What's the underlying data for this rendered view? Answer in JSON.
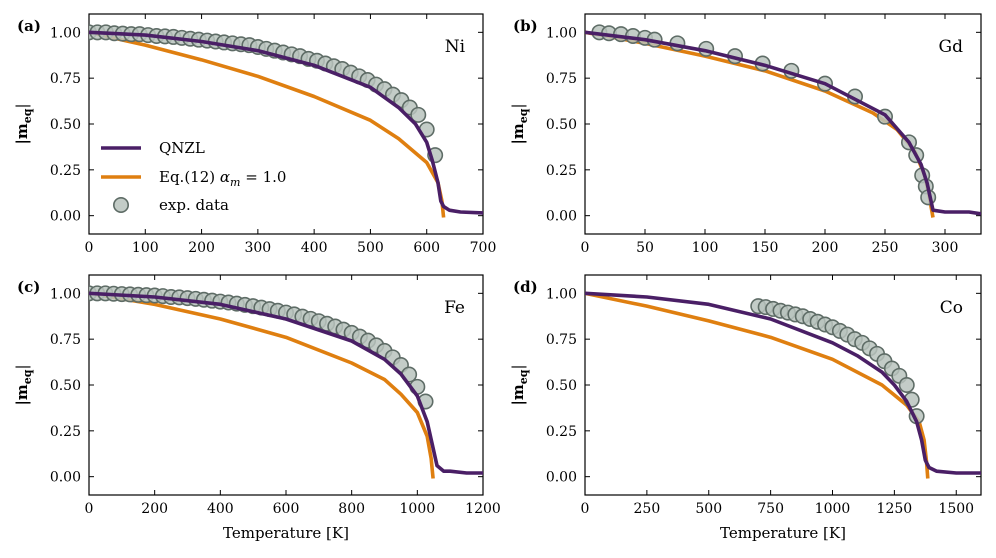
{
  "colors": {
    "qnzl": "#4a1f66",
    "eq12": "#df7f10",
    "exp_fill": "#b9c3bd",
    "exp_edge": "#5e6c66"
  },
  "legend": {
    "qnzl": "QNZL",
    "eq12_prefix": "Eq.(12) ",
    "eq12_alpha": "α",
    "eq12_sub": "m",
    "eq12_suffix": " = 1.0",
    "exp": "exp. data"
  },
  "chart_data": [
    {
      "type": "line",
      "panel": "(a)",
      "title": "Ni",
      "xlabel": "",
      "ylabel_main": "|m",
      "ylabel_sub": "eq",
      "ylabel_end": "|",
      "xlim": [
        0,
        700
      ],
      "ylim": [
        -0.1,
        1.1
      ],
      "xticks": [
        0,
        100,
        200,
        300,
        400,
        500,
        600,
        700
      ],
      "yticks": [
        0.0,
        0.25,
        0.5,
        0.75,
        1.0
      ],
      "ytick_labels": [
        "0.00",
        "0.25",
        "0.50",
        "0.75",
        "1.00"
      ],
      "show_legend": true,
      "series": [
        {
          "name": "QNZL",
          "x": [
            0,
            100,
            200,
            300,
            400,
            500,
            550,
            580,
            600,
            610,
            620,
            625,
            630,
            640,
            660,
            700
          ],
          "y": [
            1.0,
            0.985,
            0.95,
            0.9,
            0.82,
            0.7,
            0.59,
            0.5,
            0.4,
            0.3,
            0.18,
            0.08,
            0.05,
            0.03,
            0.02,
            0.015
          ]
        },
        {
          "name": "Eq.(12) α_m = 1.0",
          "x": [
            0,
            100,
            200,
            300,
            400,
            500,
            550,
            600,
            620,
            627,
            630
          ],
          "y": [
            1.0,
            0.93,
            0.85,
            0.76,
            0.65,
            0.52,
            0.42,
            0.29,
            0.18,
            0.08,
            -0.01
          ]
        },
        {
          "name": "exp. data",
          "x": [
            0,
            15,
            30,
            45,
            60,
            75,
            90,
            105,
            120,
            135,
            150,
            165,
            180,
            195,
            210,
            225,
            240,
            255,
            270,
            285,
            300,
            315,
            330,
            345,
            360,
            375,
            390,
            405,
            420,
            435,
            450,
            465,
            480,
            495,
            510,
            525,
            540,
            555,
            570,
            585,
            600,
            615
          ],
          "y": [
            1.0,
            1.0,
            1.0,
            0.995,
            0.993,
            0.99,
            0.99,
            0.985,
            0.98,
            0.978,
            0.975,
            0.97,
            0.965,
            0.96,
            0.955,
            0.95,
            0.945,
            0.94,
            0.935,
            0.93,
            0.92,
            0.91,
            0.9,
            0.89,
            0.88,
            0.87,
            0.855,
            0.845,
            0.83,
            0.815,
            0.8,
            0.78,
            0.76,
            0.74,
            0.715,
            0.69,
            0.66,
            0.63,
            0.59,
            0.55,
            0.47,
            0.33
          ]
        }
      ]
    },
    {
      "type": "line",
      "panel": "(b)",
      "title": "Gd",
      "xlabel": "",
      "ylabel_main": "|m",
      "ylabel_sub": "eq",
      "ylabel_end": "|",
      "xlim": [
        0,
        330
      ],
      "ylim": [
        -0.1,
        1.1
      ],
      "xticks": [
        0,
        50,
        100,
        150,
        200,
        250,
        300
      ],
      "yticks": [
        0.0,
        0.25,
        0.5,
        0.75,
        1.0
      ],
      "ytick_labels": [
        "0.00",
        "0.25",
        "0.50",
        "0.75",
        "1.00"
      ],
      "show_legend": false,
      "series": [
        {
          "name": "QNZL",
          "x": [
            0,
            50,
            100,
            150,
            200,
            250,
            270,
            280,
            285,
            288,
            290,
            300,
            320,
            330
          ],
          "y": [
            1.0,
            0.96,
            0.9,
            0.82,
            0.72,
            0.55,
            0.4,
            0.28,
            0.18,
            0.09,
            0.03,
            0.02,
            0.02,
            0.01
          ]
        },
        {
          "name": "Eq.(12) α_m = 1.0",
          "x": [
            0,
            50,
            100,
            150,
            200,
            240,
            260,
            275,
            283,
            287,
            290
          ],
          "y": [
            1.0,
            0.94,
            0.87,
            0.79,
            0.68,
            0.56,
            0.47,
            0.35,
            0.22,
            0.1,
            -0.01
          ]
        },
        {
          "name": "exp. data",
          "x": [
            12,
            20,
            30,
            40,
            50,
            58,
            77,
            101,
            125,
            148,
            172,
            200,
            225,
            250,
            270,
            276,
            281,
            284,
            286
          ],
          "y": [
            1.0,
            0.995,
            0.99,
            0.98,
            0.97,
            0.96,
            0.94,
            0.91,
            0.87,
            0.83,
            0.79,
            0.72,
            0.65,
            0.54,
            0.4,
            0.33,
            0.22,
            0.16,
            0.1
          ]
        }
      ]
    },
    {
      "type": "line",
      "panel": "(c)",
      "title": "Fe",
      "xlabel": "Temperature [K]",
      "ylabel_main": "|m",
      "ylabel_sub": "eq",
      "ylabel_end": "|",
      "xlim": [
        0,
        1200
      ],
      "ylim": [
        -0.1,
        1.1
      ],
      "xticks": [
        0,
        200,
        400,
        600,
        800,
        1000,
        1200
      ],
      "yticks": [
        0.0,
        0.25,
        0.5,
        0.75,
        1.0
      ],
      "ytick_labels": [
        "0.00",
        "0.25",
        "0.50",
        "0.75",
        "1.00"
      ],
      "show_legend": false,
      "series": [
        {
          "name": "QNZL",
          "x": [
            0,
            200,
            400,
            600,
            800,
            900,
            950,
            1000,
            1030,
            1045,
            1060,
            1080,
            1100,
            1150,
            1200
          ],
          "y": [
            1.0,
            0.98,
            0.94,
            0.86,
            0.74,
            0.64,
            0.56,
            0.44,
            0.3,
            0.18,
            0.06,
            0.03,
            0.03,
            0.02,
            0.02
          ]
        },
        {
          "name": "Eq.(12) α_m = 1.0",
          "x": [
            0,
            200,
            400,
            600,
            800,
            900,
            950,
            1000,
            1030,
            1042,
            1048
          ],
          "y": [
            1.0,
            0.94,
            0.86,
            0.76,
            0.62,
            0.53,
            0.45,
            0.35,
            0.22,
            0.1,
            -0.01
          ]
        },
        {
          "name": "exp. data",
          "x": [
            0,
            25,
            50,
            75,
            100,
            125,
            150,
            175,
            200,
            225,
            250,
            275,
            300,
            325,
            350,
            375,
            400,
            425,
            450,
            475,
            500,
            525,
            550,
            575,
            600,
            625,
            650,
            675,
            700,
            725,
            750,
            775,
            800,
            825,
            850,
            875,
            900,
            925,
            950,
            975,
            1000,
            1025
          ],
          "y": [
            1.0,
            1.0,
            1.0,
            0.998,
            0.996,
            0.994,
            0.992,
            0.99,
            0.988,
            0.985,
            0.98,
            0.978,
            0.974,
            0.97,
            0.965,
            0.96,
            0.955,
            0.95,
            0.944,
            0.937,
            0.93,
            0.922,
            0.914,
            0.905,
            0.895,
            0.885,
            0.873,
            0.861,
            0.848,
            0.834,
            0.819,
            0.802,
            0.784,
            0.764,
            0.742,
            0.716,
            0.686,
            0.651,
            0.609,
            0.557,
            0.49,
            0.41
          ]
        }
      ]
    },
    {
      "type": "line",
      "panel": "(d)",
      "title": "Co",
      "xlabel": "Temperature [K]",
      "ylabel_main": "|m",
      "ylabel_sub": "eq",
      "ylabel_end": "|",
      "xlim": [
        0,
        1600
      ],
      "ylim": [
        -0.1,
        1.1
      ],
      "xticks": [
        0,
        250,
        500,
        750,
        1000,
        1250,
        1500
      ],
      "yticks": [
        0.0,
        0.25,
        0.5,
        0.75,
        1.0
      ],
      "ytick_labels": [
        "0.00",
        "0.25",
        "0.50",
        "0.75",
        "1.00"
      ],
      "show_legend": false,
      "series": [
        {
          "name": "QNZL",
          "x": [
            0,
            250,
            500,
            750,
            1000,
            1100,
            1200,
            1250,
            1300,
            1340,
            1360,
            1375,
            1390,
            1420,
            1500,
            1600
          ],
          "y": [
            1.0,
            0.98,
            0.94,
            0.86,
            0.73,
            0.66,
            0.57,
            0.5,
            0.41,
            0.3,
            0.2,
            0.09,
            0.05,
            0.03,
            0.02,
            0.02
          ]
        },
        {
          "name": "Eq.(12) α_m = 1.0",
          "x": [
            0,
            250,
            500,
            750,
            1000,
            1200,
            1300,
            1350,
            1370,
            1380,
            1385
          ],
          "y": [
            1.0,
            0.93,
            0.85,
            0.76,
            0.64,
            0.5,
            0.39,
            0.3,
            0.2,
            0.08,
            -0.01
          ]
        },
        {
          "name": "exp. data",
          "x": [
            700,
            730,
            760,
            790,
            820,
            850,
            880,
            910,
            940,
            970,
            1000,
            1030,
            1060,
            1090,
            1120,
            1150,
            1180,
            1210,
            1240,
            1270,
            1300,
            1320,
            1340
          ],
          "y": [
            0.93,
            0.925,
            0.915,
            0.905,
            0.895,
            0.885,
            0.875,
            0.86,
            0.845,
            0.83,
            0.815,
            0.795,
            0.775,
            0.75,
            0.73,
            0.7,
            0.67,
            0.63,
            0.59,
            0.55,
            0.5,
            0.42,
            0.33
          ]
        }
      ]
    }
  ]
}
